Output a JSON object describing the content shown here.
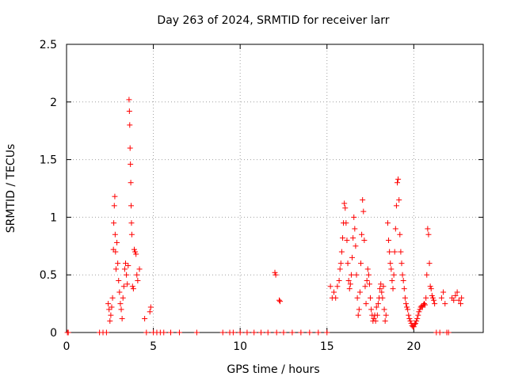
{
  "chart_data": {
    "type": "scatter",
    "title": "Day 263 of 2024, SRMTID for receiver larr",
    "xlabel": "GPS time / hours",
    "ylabel": "SRMTID / TECUs",
    "xlim": [
      0,
      24
    ],
    "ylim": [
      0,
      2.5
    ],
    "x_ticks": [
      0,
      5,
      10,
      15,
      20
    ],
    "x_tick_labels": [
      "0",
      "5",
      "10",
      "15",
      "20"
    ],
    "y_ticks": [
      0,
      0.5,
      1,
      1.5,
      2,
      2.5
    ],
    "y_tick_labels": [
      "0",
      "0.5",
      "1",
      "1.5",
      "2",
      "2.5"
    ],
    "grid": true,
    "marker": "+",
    "color": "#ff0000",
    "series": [
      {
        "name": "SRMTID",
        "points": [
          [
            0.05,
            0
          ],
          [
            0.1,
            0
          ],
          [
            1.9,
            0
          ],
          [
            2.1,
            0
          ],
          [
            2.3,
            0
          ],
          [
            2.4,
            0.25
          ],
          [
            2.45,
            0.2
          ],
          [
            2.5,
            0.1
          ],
          [
            2.55,
            0.15
          ],
          [
            2.6,
            0.22
          ],
          [
            2.65,
            0.3
          ],
          [
            2.7,
            0.72
          ],
          [
            2.72,
            0.95
          ],
          [
            2.75,
            1.1
          ],
          [
            2.78,
            1.18
          ],
          [
            2.8,
            0.85
          ],
          [
            2.82,
            0.7
          ],
          [
            2.85,
            0.55
          ],
          [
            2.9,
            0.78
          ],
          [
            2.95,
            0.6
          ],
          [
            3.0,
            0.45
          ],
          [
            3.05,
            0.35
          ],
          [
            3.1,
            0.25
          ],
          [
            3.15,
            0.2
          ],
          [
            3.2,
            0.12
          ],
          [
            3.25,
            0.3
          ],
          [
            3.3,
            0.4
          ],
          [
            3.35,
            0.55
          ],
          [
            3.4,
            0.6
          ],
          [
            3.45,
            0.5
          ],
          [
            3.5,
            0.42
          ],
          [
            3.55,
            0.58
          ],
          [
            3.6,
            2.02
          ],
          [
            3.62,
            1.92
          ],
          [
            3.64,
            1.8
          ],
          [
            3.66,
            1.6
          ],
          [
            3.68,
            1.46
          ],
          [
            3.7,
            1.3
          ],
          [
            3.72,
            1.1
          ],
          [
            3.74,
            0.95
          ],
          [
            3.76,
            0.85
          ],
          [
            3.8,
            0.4
          ],
          [
            3.85,
            0.38
          ],
          [
            3.9,
            0.72
          ],
          [
            3.95,
            0.7
          ],
          [
            4.0,
            0.68
          ],
          [
            4.05,
            0.5
          ],
          [
            4.1,
            0.45
          ],
          [
            4.2,
            0.55
          ],
          [
            4.5,
            0.12
          ],
          [
            4.6,
            0
          ],
          [
            4.8,
            0.18
          ],
          [
            4.85,
            0.22
          ],
          [
            5.0,
            0
          ],
          [
            5.2,
            0
          ],
          [
            5.4,
            0
          ],
          [
            5.6,
            0
          ],
          [
            6.0,
            0
          ],
          [
            6.5,
            0
          ],
          [
            7.5,
            0
          ],
          [
            9.0,
            0
          ],
          [
            9.4,
            0
          ],
          [
            9.6,
            0
          ],
          [
            10.0,
            0
          ],
          [
            10.4,
            0
          ],
          [
            10.8,
            0
          ],
          [
            11.2,
            0
          ],
          [
            11.6,
            0
          ],
          [
            12.0,
            0.52
          ],
          [
            12.05,
            0.5
          ],
          [
            12.1,
            0
          ],
          [
            12.25,
            0.28
          ],
          [
            12.3,
            0.27
          ],
          [
            12.5,
            0
          ],
          [
            13.0,
            0
          ],
          [
            13.5,
            0
          ],
          [
            14.0,
            0
          ],
          [
            14.5,
            0
          ],
          [
            15.0,
            0
          ],
          [
            15.2,
            0.4
          ],
          [
            15.3,
            0.3
          ],
          [
            15.4,
            0.35
          ],
          [
            15.5,
            0.3
          ],
          [
            15.6,
            0.4
          ],
          [
            15.7,
            0.45
          ],
          [
            15.75,
            0.55
          ],
          [
            15.8,
            0.6
          ],
          [
            15.85,
            0.7
          ],
          [
            15.9,
            0.82
          ],
          [
            15.95,
            0.95
          ],
          [
            16.0,
            1.12
          ],
          [
            16.05,
            1.08
          ],
          [
            16.1,
            0.95
          ],
          [
            16.15,
            0.8
          ],
          [
            16.2,
            0.6
          ],
          [
            16.25,
            0.45
          ],
          [
            16.3,
            0.38
          ],
          [
            16.35,
            0.42
          ],
          [
            16.4,
            0.5
          ],
          [
            16.45,
            0.65
          ],
          [
            16.5,
            0.82
          ],
          [
            16.55,
            1.0
          ],
          [
            16.6,
            0.9
          ],
          [
            16.65,
            0.75
          ],
          [
            16.7,
            0.5
          ],
          [
            16.75,
            0.3
          ],
          [
            16.8,
            0.15
          ],
          [
            16.85,
            0.2
          ],
          [
            16.9,
            0.35
          ],
          [
            16.95,
            0.6
          ],
          [
            17.0,
            0.85
          ],
          [
            17.05,
            1.15
          ],
          [
            17.1,
            1.05
          ],
          [
            17.15,
            0.8
          ],
          [
            17.2,
            0.4
          ],
          [
            17.25,
            0.25
          ],
          [
            17.3,
            0.45
          ],
          [
            17.35,
            0.55
          ],
          [
            17.4,
            0.5
          ],
          [
            17.45,
            0.42
          ],
          [
            17.5,
            0.3
          ],
          [
            17.55,
            0.2
          ],
          [
            17.6,
            0.15
          ],
          [
            17.65,
            0.1
          ],
          [
            17.7,
            0.12
          ],
          [
            17.75,
            0.15
          ],
          [
            17.8,
            0.1
          ],
          [
            17.85,
            0.22
          ],
          [
            17.9,
            0.15
          ],
          [
            17.95,
            0.25
          ],
          [
            18.0,
            0.3
          ],
          [
            18.05,
            0.38
          ],
          [
            18.1,
            0.42
          ],
          [
            18.15,
            0.35
          ],
          [
            18.2,
            0.3
          ],
          [
            18.25,
            0.4
          ],
          [
            18.3,
            0.2
          ],
          [
            18.35,
            0.1
          ],
          [
            18.4,
            0.15
          ],
          [
            18.5,
            0.95
          ],
          [
            18.55,
            0.8
          ],
          [
            18.6,
            0.7
          ],
          [
            18.65,
            0.6
          ],
          [
            18.7,
            0.55
          ],
          [
            18.75,
            0.45
          ],
          [
            18.8,
            0.38
          ],
          [
            18.85,
            0.5
          ],
          [
            18.9,
            0.7
          ],
          [
            18.95,
            0.9
          ],
          [
            19.0,
            1.1
          ],
          [
            19.05,
            1.3
          ],
          [
            19.1,
            1.33
          ],
          [
            19.15,
            1.15
          ],
          [
            19.2,
            0.85
          ],
          [
            19.25,
            0.7
          ],
          [
            19.3,
            0.6
          ],
          [
            19.35,
            0.5
          ],
          [
            19.4,
            0.45
          ],
          [
            19.45,
            0.38
          ],
          [
            19.5,
            0.3
          ],
          [
            19.55,
            0.25
          ],
          [
            19.6,
            0.22
          ],
          [
            19.65,
            0.2
          ],
          [
            19.7,
            0.15
          ],
          [
            19.75,
            0.12
          ],
          [
            19.8,
            0.1
          ],
          [
            19.85,
            0.08
          ],
          [
            19.9,
            0.06
          ],
          [
            19.95,
            0.05
          ],
          [
            20.0,
            0.05
          ],
          [
            20.05,
            0.07
          ],
          [
            20.1,
            0.08
          ],
          [
            20.15,
            0.1
          ],
          [
            20.2,
            0.12
          ],
          [
            20.25,
            0.15
          ],
          [
            20.3,
            0.18
          ],
          [
            20.35,
            0.2
          ],
          [
            20.4,
            0.22
          ],
          [
            20.45,
            0.23
          ],
          [
            20.5,
            0.22
          ],
          [
            20.55,
            0.24
          ],
          [
            20.6,
            0.25
          ],
          [
            20.65,
            0.24
          ],
          [
            20.7,
            0.3
          ],
          [
            20.75,
            0.5
          ],
          [
            20.8,
            0.9
          ],
          [
            20.85,
            0.85
          ],
          [
            20.9,
            0.6
          ],
          [
            20.95,
            0.4
          ],
          [
            21.0,
            0.38
          ],
          [
            21.05,
            0.32
          ],
          [
            21.1,
            0.3
          ],
          [
            21.15,
            0.28
          ],
          [
            21.2,
            0.25
          ],
          [
            21.3,
            0
          ],
          [
            21.5,
            0
          ],
          [
            21.6,
            0.3
          ],
          [
            21.7,
            0.35
          ],
          [
            21.8,
            0.25
          ],
          [
            21.9,
            0
          ],
          [
            22.0,
            0
          ],
          [
            22.2,
            0.3
          ],
          [
            22.3,
            0.28
          ],
          [
            22.4,
            0.32
          ],
          [
            22.5,
            0.35
          ],
          [
            22.6,
            0.28
          ],
          [
            22.7,
            0.25
          ],
          [
            22.75,
            0.3
          ]
        ]
      }
    ]
  }
}
